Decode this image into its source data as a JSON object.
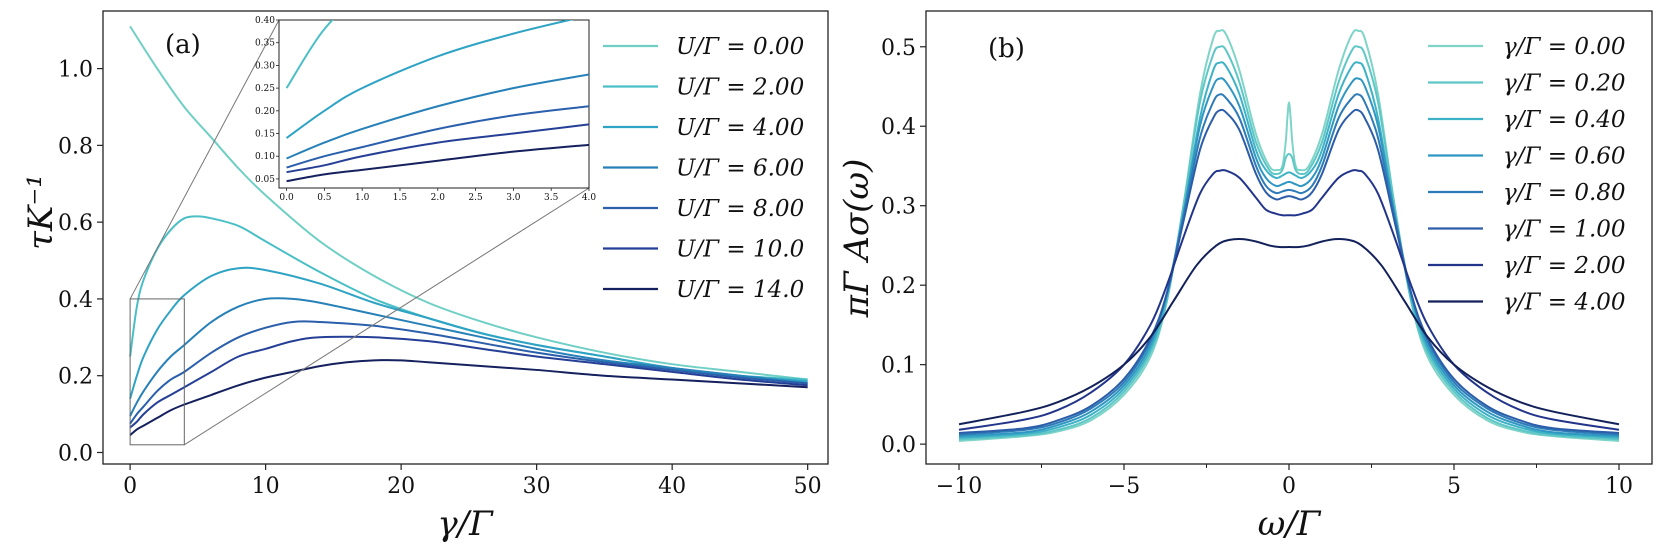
{
  "chart_data": [
    {
      "panel": "a",
      "panel_tag": "(a)",
      "type": "line",
      "xlabel": "γ/Γ",
      "ylabel": "τK⁻¹",
      "xlim": [
        -2,
        51.5
      ],
      "ylim": [
        -0.03,
        1.15
      ],
      "xticks": [
        0,
        10,
        20,
        30,
        40,
        50
      ],
      "yticks": [
        0.0,
        0.2,
        0.4,
        0.6,
        0.8,
        1.0
      ],
      "series": [
        {
          "name": "U/Γ = 0.00",
          "color": "#6fcfc4",
          "x": [
            0,
            2,
            4,
            6,
            8,
            10,
            14,
            18,
            22,
            26,
            30,
            35,
            40,
            45,
            50
          ],
          "y": [
            1.11,
            1.0,
            0.9,
            0.82,
            0.74,
            0.67,
            0.55,
            0.46,
            0.39,
            0.34,
            0.3,
            0.26,
            0.23,
            0.21,
            0.19
          ]
        },
        {
          "name": "U/Γ = 2.00",
          "color": "#4bbfc6",
          "x": [
            0,
            0.5,
            1,
            2,
            3,
            4,
            5,
            6,
            8,
            10,
            14,
            18,
            22,
            26,
            30,
            35,
            40,
            45,
            50
          ],
          "y": [
            0.25,
            0.38,
            0.45,
            0.53,
            0.58,
            0.61,
            0.615,
            0.61,
            0.59,
            0.55,
            0.47,
            0.4,
            0.35,
            0.31,
            0.28,
            0.25,
            0.22,
            0.2,
            0.19
          ]
        },
        {
          "name": "U/Γ = 4.00",
          "color": "#2ea3c4",
          "x": [
            0,
            0.5,
            1,
            2,
            3,
            4,
            6,
            8,
            10,
            14,
            18,
            22,
            26,
            30,
            35,
            40,
            45,
            50
          ],
          "y": [
            0.14,
            0.2,
            0.25,
            0.32,
            0.37,
            0.41,
            0.46,
            0.48,
            0.475,
            0.44,
            0.39,
            0.35,
            0.31,
            0.28,
            0.25,
            0.22,
            0.2,
            0.185
          ]
        },
        {
          "name": "U/Γ = 6.00",
          "color": "#2781b8",
          "x": [
            0,
            0.5,
            1,
            2,
            3,
            4,
            6,
            8,
            10,
            12,
            14,
            18,
            22,
            26,
            30,
            35,
            40,
            45,
            50
          ],
          "y": [
            0.095,
            0.13,
            0.16,
            0.21,
            0.25,
            0.28,
            0.34,
            0.38,
            0.4,
            0.4,
            0.39,
            0.36,
            0.33,
            0.3,
            0.27,
            0.24,
            0.22,
            0.2,
            0.18
          ]
        },
        {
          "name": "U/Γ = 8.00",
          "color": "#2a5fab",
          "x": [
            0,
            0.5,
            1,
            2,
            3,
            4,
            6,
            8,
            10,
            12,
            14,
            18,
            22,
            26,
            30,
            35,
            40,
            45,
            50
          ],
          "y": [
            0.075,
            0.1,
            0.12,
            0.16,
            0.19,
            0.21,
            0.26,
            0.3,
            0.325,
            0.34,
            0.34,
            0.33,
            0.31,
            0.285,
            0.26,
            0.235,
            0.215,
            0.195,
            0.18
          ]
        },
        {
          "name": "U/Γ = 10.0",
          "color": "#253f96",
          "x": [
            0,
            0.5,
            1,
            2,
            3,
            4,
            6,
            8,
            10,
            12,
            14,
            18,
            22,
            26,
            30,
            35,
            40,
            45,
            50
          ],
          "y": [
            0.065,
            0.08,
            0.1,
            0.13,
            0.15,
            0.17,
            0.21,
            0.25,
            0.27,
            0.29,
            0.3,
            0.3,
            0.29,
            0.27,
            0.25,
            0.23,
            0.21,
            0.19,
            0.175
          ]
        },
        {
          "name": "U/Γ = 14.0",
          "color": "#15205e",
          "x": [
            0,
            0.5,
            1,
            2,
            3,
            4,
            6,
            8,
            10,
            12,
            14,
            16,
            18,
            20,
            22,
            26,
            30,
            35,
            40,
            45,
            50
          ],
          "y": [
            0.045,
            0.06,
            0.07,
            0.09,
            0.11,
            0.125,
            0.15,
            0.175,
            0.195,
            0.21,
            0.225,
            0.235,
            0.24,
            0.24,
            0.235,
            0.225,
            0.215,
            0.2,
            0.19,
            0.18,
            0.17
          ]
        }
      ],
      "inset": {
        "xlim": [
          -0.1,
          4.0
        ],
        "ylim": [
          0.03,
          0.4
        ],
        "xticks": [
          "0.0",
          "0.5",
          "1.0",
          "1.5",
          "2.0",
          "2.5",
          "3.0",
          "3.5",
          "4.0"
        ],
        "yticks": [
          "0.05",
          "0.10",
          "0.15",
          "0.20",
          "0.25",
          "0.30",
          "0.35",
          "0.40"
        ],
        "zoom_box": {
          "x": [
            0,
            4
          ],
          "y": [
            0.02,
            0.4
          ]
        }
      }
    },
    {
      "panel": "b",
      "panel_tag": "(b)",
      "type": "line",
      "xlabel": "ω/Γ",
      "ylabel": "πΓ Aσ(ω)",
      "xlim": [
        -11,
        11
      ],
      "ylim": [
        -0.025,
        0.545
      ],
      "xticks": [
        -10,
        -5,
        0,
        5,
        10
      ],
      "yticks": [
        0.0,
        0.1,
        0.2,
        0.3,
        0.4,
        0.5
      ],
      "series": [
        {
          "name": "γ/Γ = 0.00",
          "color": "#7fd4c8",
          "x": [
            0,
            0.05,
            0.1,
            0.2,
            0.35,
            0.6,
            1.0,
            1.5,
            1.9,
            2.1,
            2.3,
            2.7,
            3.2,
            3.7,
            4.2,
            5,
            6,
            7,
            8,
            10
          ],
          "y": [
            0.43,
            0.41,
            0.38,
            0.35,
            0.345,
            0.35,
            0.39,
            0.47,
            0.515,
            0.52,
            0.51,
            0.44,
            0.3,
            0.18,
            0.11,
            0.062,
            0.03,
            0.016,
            0.01,
            0.004
          ]
        },
        {
          "name": "γ/Γ = 0.20",
          "color": "#5ec6c6",
          "x": [
            0,
            0.1,
            0.2,
            0.35,
            0.6,
            1.0,
            1.5,
            1.9,
            2.1,
            2.3,
            2.7,
            3.2,
            3.7,
            4.2,
            5,
            6,
            7,
            8,
            10
          ],
          "y": [
            0.365,
            0.36,
            0.345,
            0.34,
            0.345,
            0.38,
            0.455,
            0.495,
            0.5,
            0.49,
            0.43,
            0.3,
            0.18,
            0.115,
            0.066,
            0.033,
            0.018,
            0.011,
            0.006
          ]
        },
        {
          "name": "γ/Γ = 0.40",
          "color": "#3db2c6",
          "x": [
            0,
            0.2,
            0.4,
            0.7,
            1.0,
            1.5,
            1.9,
            2.1,
            2.3,
            2.7,
            3.2,
            3.7,
            4.2,
            5,
            6,
            7,
            8,
            10
          ],
          "y": [
            0.342,
            0.338,
            0.335,
            0.345,
            0.37,
            0.44,
            0.475,
            0.48,
            0.47,
            0.41,
            0.29,
            0.185,
            0.12,
            0.07,
            0.037,
            0.021,
            0.013,
            0.008
          ]
        },
        {
          "name": "γ/Γ = 0.60",
          "color": "#2f97c2",
          "x": [
            0,
            0.2,
            0.4,
            0.7,
            1.0,
            1.5,
            1.9,
            2.1,
            2.3,
            2.7,
            3.2,
            3.7,
            4.2,
            5,
            6,
            7,
            8,
            10
          ],
          "y": [
            0.33,
            0.327,
            0.325,
            0.335,
            0.36,
            0.425,
            0.455,
            0.46,
            0.45,
            0.4,
            0.29,
            0.19,
            0.125,
            0.074,
            0.041,
            0.024,
            0.015,
            0.01
          ]
        },
        {
          "name": "γ/Γ = 0.80",
          "color": "#2c7ab8",
          "x": [
            0,
            0.2,
            0.4,
            0.7,
            1.0,
            1.5,
            1.9,
            2.1,
            2.3,
            2.7,
            3.2,
            3.7,
            4.2,
            5,
            6,
            7,
            8,
            10
          ],
          "y": [
            0.32,
            0.318,
            0.316,
            0.325,
            0.35,
            0.41,
            0.435,
            0.44,
            0.43,
            0.385,
            0.285,
            0.19,
            0.13,
            0.078,
            0.045,
            0.027,
            0.018,
            0.012
          ]
        },
        {
          "name": "γ/Γ = 1.00",
          "color": "#2c5da9",
          "x": [
            0,
            0.2,
            0.4,
            0.7,
            1.0,
            1.5,
            1.9,
            2.1,
            2.3,
            2.7,
            3.2,
            3.7,
            4.2,
            5,
            6,
            7,
            8,
            10
          ],
          "y": [
            0.312,
            0.31,
            0.308,
            0.317,
            0.34,
            0.395,
            0.417,
            0.42,
            0.41,
            0.37,
            0.28,
            0.19,
            0.133,
            0.082,
            0.048,
            0.03,
            0.02,
            0.014
          ]
        },
        {
          "name": "γ/Γ = 2.00",
          "color": "#22358a",
          "x": [
            0,
            0.2,
            0.4,
            0.7,
            1.0,
            1.5,
            1.9,
            2.1,
            2.3,
            2.7,
            3.2,
            3.7,
            4.2,
            5,
            6,
            7,
            8,
            10
          ],
          "y": [
            0.288,
            0.288,
            0.29,
            0.295,
            0.31,
            0.335,
            0.344,
            0.344,
            0.34,
            0.315,
            0.26,
            0.2,
            0.15,
            0.1,
            0.065,
            0.043,
            0.031,
            0.018
          ]
        },
        {
          "name": "γ/Γ = 4.00",
          "color": "#13215a",
          "x": [
            0,
            0.3,
            0.6,
            1.0,
            1.4,
            1.8,
            2.2,
            2.8,
            3.5,
            4.2,
            5,
            6,
            7,
            8,
            10
          ],
          "y": [
            0.248,
            0.248,
            0.25,
            0.255,
            0.258,
            0.257,
            0.25,
            0.225,
            0.18,
            0.135,
            0.1,
            0.072,
            0.053,
            0.041,
            0.025
          ]
        }
      ]
    }
  ]
}
